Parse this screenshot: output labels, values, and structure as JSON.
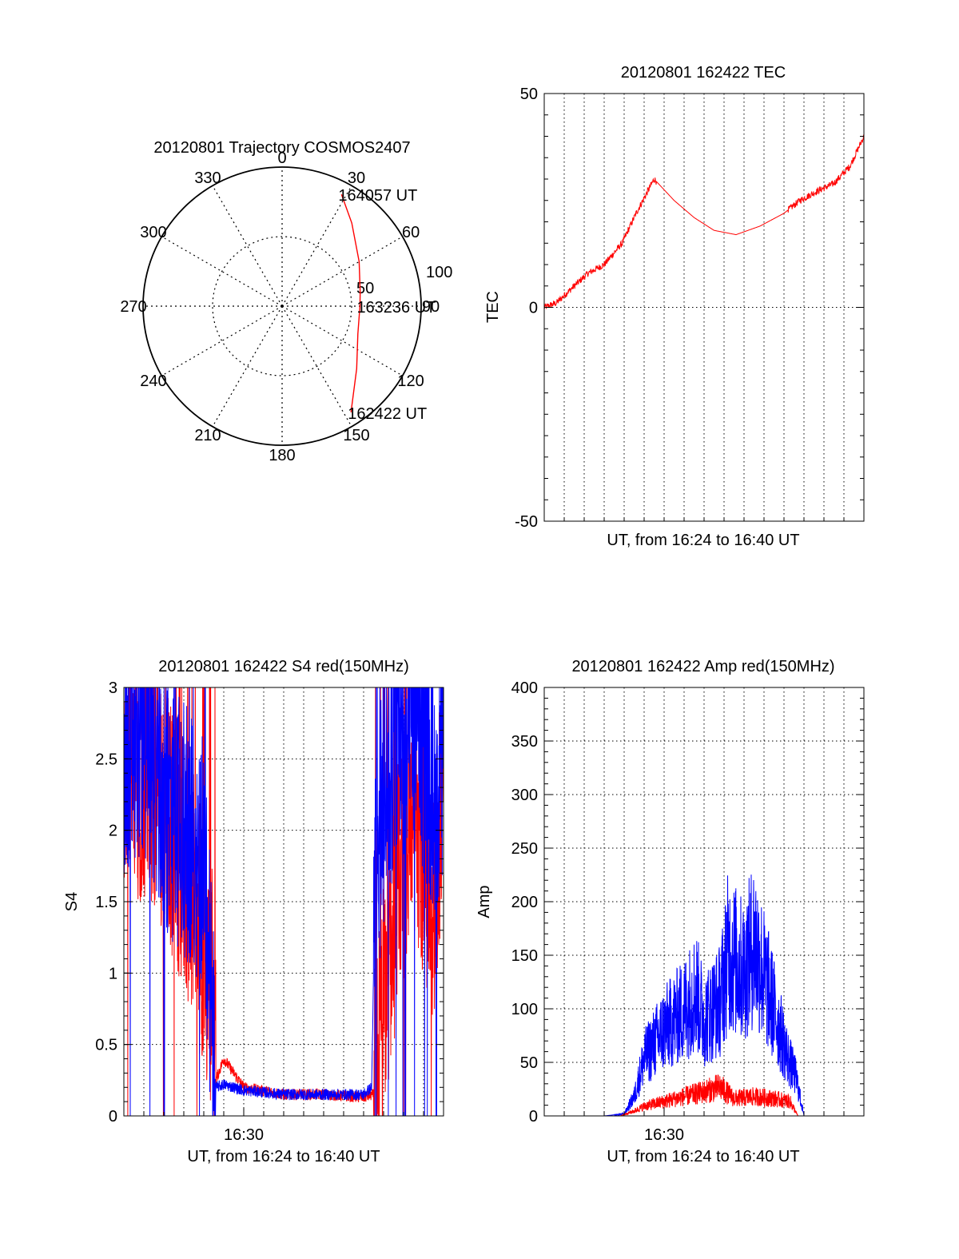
{
  "colors": {
    "red": "#ff0000",
    "blue": "#0000ff",
    "axis": "#000000",
    "grid": "#000000"
  },
  "chart_data": [
    {
      "id": "polar",
      "type": "scatter",
      "subtype": "polar-trajectory",
      "title": "20120801 Trajectory COSMOS2407",
      "azimuth_labels": [
        "0",
        "30",
        "60",
        "90",
        "120",
        "150",
        "180",
        "210",
        "240",
        "270",
        "300",
        "330"
      ],
      "radial_rings": [
        50,
        100
      ],
      "radial_labels": [
        "50",
        "100"
      ],
      "series": [
        {
          "color": "#ff0000",
          "points": [
            {
              "az": 28,
              "r": 91
            },
            {
              "az": 40,
              "r": 78
            },
            {
              "az": 60,
              "r": 64
            },
            {
              "az": 80,
              "r": 57
            },
            {
              "az": 90,
              "r": 56
            },
            {
              "az": 110,
              "r": 58
            },
            {
              "az": 130,
              "r": 70
            },
            {
              "az": 147,
              "r": 91
            }
          ]
        }
      ],
      "annotations": [
        {
          "text": "164057 UT",
          "az": 28,
          "r": 91
        },
        {
          "text": "163236 UT",
          "az": 90,
          "r": 56
        },
        {
          "text": "162422 UT",
          "az": 147,
          "r": 91
        }
      ]
    },
    {
      "id": "tec",
      "type": "line",
      "title": "20120801 162422 TEC",
      "xlabel": "UT, from 16:24 to 16:40 UT",
      "ylabel": "TEC",
      "ylim": [
        -50,
        50
      ],
      "yticks": [
        -50,
        0,
        50
      ],
      "grid": true,
      "series": [
        {
          "color": "#ff0000",
          "x": [
            0,
            0.6,
            1.5,
            2.2,
            3,
            3.9,
            4.6,
            5.5,
            6.5,
            7.5,
            8.5,
            9.6,
            10.8,
            12,
            12.8,
            13.6,
            14.5,
            15.3,
            16
          ],
          "y": [
            0,
            1,
            5,
            8,
            10,
            15,
            22,
            30,
            25,
            21,
            18,
            17,
            19,
            22,
            25,
            27,
            29,
            33,
            40
          ]
        }
      ]
    },
    {
      "id": "s4",
      "type": "line",
      "title": "20120801 162422 S4 red(150MHz)",
      "xlabel": "UT, from 16:24 to 16:40 UT",
      "ylabel": "S4",
      "ylim": [
        0,
        3
      ],
      "yticks": [
        "0",
        "0.5",
        "1",
        "1.5",
        "2",
        "2.5",
        "3"
      ],
      "xticks": [
        {
          "x": 6,
          "label": "16:30"
        }
      ],
      "grid": true,
      "series": [
        {
          "color": "#ff0000",
          "x": [
            0,
            1,
            2,
            3.5,
            4.5,
            4.6,
            5,
            6,
            8,
            10,
            12,
            12.5,
            13.5,
            14.5,
            15.5,
            16
          ],
          "y": [
            2.3,
            2.4,
            2.2,
            1.5,
            0.9,
            0.25,
            0.4,
            0.2,
            0.15,
            0.15,
            0.13,
            0.15,
            1.4,
            2.2,
            1.5,
            2.5
          ]
        },
        {
          "color": "#0000ff",
          "x": [
            0,
            1,
            2,
            3,
            4,
            4.6,
            5,
            6,
            8,
            10,
            12,
            12.4,
            12.6,
            13.5,
            14.5,
            15.5,
            16
          ],
          "y": [
            2.4,
            2.7,
            2.2,
            2.0,
            1.8,
            0.2,
            0.22,
            0.18,
            0.15,
            0.15,
            0.15,
            0.2,
            1.8,
            2.6,
            2.8,
            2.3,
            2.5
          ]
        }
      ]
    },
    {
      "id": "amp",
      "type": "line",
      "title": "20120801 162422 Amp red(150MHz)",
      "xlabel": "UT, from 16:24 to 16:40 UT",
      "ylabel": "Amp",
      "ylim": [
        0,
        400
      ],
      "yticks": [
        "0",
        "50",
        "100",
        "150",
        "200",
        "250",
        "300",
        "350",
        "400"
      ],
      "xticks": [
        {
          "x": 6,
          "label": "16:30"
        }
      ],
      "grid": true,
      "series": [
        {
          "color": "#0000ff",
          "x": [
            0,
            3,
            4,
            4.5,
            5,
            6,
            7,
            7.6,
            8,
            8.8,
            9.2,
            10,
            10.5,
            11.5,
            12.2,
            12.6,
            13,
            16
          ],
          "y": [
            0,
            0,
            2,
            20,
            60,
            90,
            110,
            130,
            100,
            120,
            170,
            150,
            180,
            110,
            60,
            40,
            0,
            0
          ]
        },
        {
          "color": "#ff0000",
          "x": [
            0,
            3.8,
            4.5,
            5,
            6,
            7,
            8,
            8.8,
            9.5,
            10.5,
            11.5,
            12.3,
            12.7,
            16
          ],
          "y": [
            0,
            0,
            5,
            10,
            15,
            20,
            25,
            30,
            18,
            20,
            18,
            15,
            0,
            0
          ]
        }
      ]
    }
  ]
}
